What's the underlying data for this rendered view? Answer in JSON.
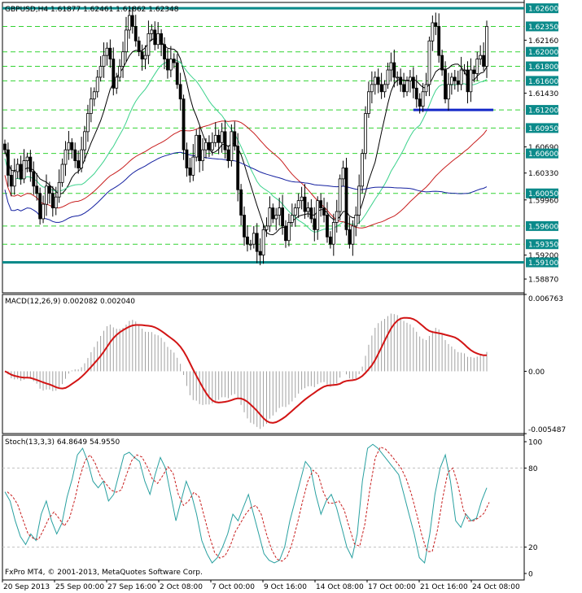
{
  "header": {
    "symbol_line": "GBPUSD,H4  1.61877 1.62461 1.61862 1.62348",
    "macd_line": "MACD(12,26,9) 0.002082 0.002040",
    "stoch_line": "Stoch(13,3,3) 64.8649 54.9550",
    "copyright": "FxPro MT4, © 2001-2013, MetaQuotes Software Corp."
  },
  "colors": {
    "candle": "#000000",
    "ma_fast": "#000000",
    "ma_green": "#3cd28c",
    "ma_red": "#c81e1e",
    "ma_blue": "#1420a0",
    "level_line": "#0a8a8a",
    "support_line": "#1428c8",
    "dashed_level": "#00c800",
    "macd_signal": "#d21414",
    "macd_hist": "#a0a0a0",
    "stoch_main": "#28a0a0",
    "stoch_signal": "#c81e1e",
    "label_box": "#0a8a8a"
  },
  "chart_data": [
    {
      "type": "candlestick",
      "title": "GBPUSD,H4",
      "ohlc_current": {
        "open": 1.61877,
        "high": 1.62461,
        "low": 1.61862,
        "close": 1.62348
      },
      "ylim": [
        1.5868,
        1.6268
      ],
      "y_ticks": [
        "1.62350",
        "1.62160",
        "1.62000",
        "1.61800",
        "1.61600",
        "1.61430",
        "1.61200",
        "1.60950",
        "1.60690",
        "1.60600",
        "1.60330",
        "1.60050",
        "1.59960",
        "1.59600",
        "1.59350",
        "1.59200",
        "1.59100",
        "1.58870"
      ],
      "highlighted_levels": [
        "1.62600",
        "1.62350",
        "1.62000",
        "1.61800",
        "1.61600",
        "1.61200",
        "1.60950",
        "1.60600",
        "1.60050",
        "1.59600",
        "1.59350",
        "1.59100"
      ],
      "solid_levels": [
        1.626,
        1.591
      ],
      "dashed_levels": [
        1.6235,
        1.62,
        1.618,
        1.616,
        1.612,
        1.6095,
        1.606,
        1.6005,
        1.596,
        1.5935
      ],
      "support_segment": {
        "price": 1.612
      },
      "x_ticks": [
        "20 Sep 2013",
        "25 Sep 00:00",
        "27 Sep 16:00",
        "2 Oct 08:00",
        "7 Oct 00:00",
        "9 Oct 16:00",
        "14 Oct 08:00",
        "17 Oct 00:00",
        "21 Oct 16:00",
        "24 Oct 08:00"
      ],
      "closes": [
        1.6065,
        1.603,
        1.6015,
        1.6035,
        1.6045,
        1.6025,
        1.605,
        1.6055,
        1.6035,
        1.6015,
        1.6005,
        1.597,
        1.599,
        1.6015,
        1.6005,
        1.5985,
        1.6,
        1.602,
        1.6045,
        1.6065,
        1.6075,
        1.6065,
        1.605,
        1.604,
        1.6065,
        1.609,
        1.6115,
        1.6135,
        1.6145,
        1.6165,
        1.618,
        1.6195,
        1.6205,
        1.619,
        1.615,
        1.6165,
        1.618,
        1.62,
        1.623,
        1.625,
        1.6235,
        1.6215,
        1.62,
        1.619,
        1.6195,
        1.6225,
        1.623,
        1.621,
        1.6225,
        1.621,
        1.619,
        1.6175,
        1.619,
        1.6185,
        1.6155,
        1.6135,
        1.6065,
        1.604,
        1.603,
        1.6055,
        1.6085,
        1.605,
        1.6065,
        1.6075,
        1.6065,
        1.6075,
        1.6085,
        1.6075,
        1.609,
        1.6065,
        1.605,
        1.609,
        1.607,
        1.601,
        1.5975,
        1.5945,
        1.5935,
        1.5935,
        1.595,
        1.5925,
        1.592,
        1.5955,
        1.596,
        1.5985,
        1.597,
        1.5975,
        1.5985,
        1.596,
        1.594,
        1.5965,
        1.5975,
        1.5985,
        1.5995,
        1.6,
        1.598,
        1.5985,
        1.597,
        1.5955,
        1.5995,
        1.5985,
        1.5975,
        1.5945,
        1.5935,
        1.5965,
        1.598,
        1.6025,
        1.604,
        1.5955,
        1.5935,
        1.596,
        1.5975,
        1.6015,
        1.606,
        1.6115,
        1.6145,
        1.6155,
        1.6165,
        1.6155,
        1.6145,
        1.6155,
        1.6175,
        1.6185,
        1.6165,
        1.6165,
        1.6155,
        1.6145,
        1.616,
        1.6165,
        1.615,
        1.6135,
        1.6125,
        1.6145,
        1.6155,
        1.6215,
        1.624,
        1.6235,
        1.6195,
        1.6175,
        1.6135,
        1.6155,
        1.6165,
        1.616,
        1.6155,
        1.6175,
        1.6175,
        1.6145,
        1.6175,
        1.617,
        1.619,
        1.6195,
        1.618,
        1.6235
      ]
    },
    {
      "type": "line",
      "title": "MACD(12,26,9) 0.002082 0.002040",
      "ylim": [
        -0.00548,
        0.00676
      ],
      "y_ticks": [
        "0.006763",
        "0.00",
        "-0.005487"
      ],
      "histogram_series": "MACD",
      "line_series": "Signal"
    },
    {
      "type": "line",
      "title": "Stoch(13,3,3) 64.8649 54.9550",
      "ylim": [
        0,
        100
      ],
      "y_ticks": [
        "100",
        "80",
        "20",
        "0"
      ],
      "series": [
        {
          "name": "%K",
          "values": [
            62,
            55,
            40,
            28,
            22,
            30,
            25,
            45,
            55,
            40,
            30,
            38,
            58,
            72,
            90,
            95,
            85,
            70,
            65,
            70,
            55,
            60,
            75,
            90,
            92,
            88,
            85,
            70,
            60,
            75,
            88,
            80,
            60,
            40,
            55,
            70,
            60,
            45,
            25,
            15,
            8,
            12,
            20,
            30,
            45,
            40,
            50,
            60,
            45,
            30,
            15,
            10,
            8,
            10,
            20,
            40,
            55,
            70,
            85,
            80,
            60,
            45,
            55,
            60,
            50,
            35,
            20,
            12,
            30,
            70,
            95,
            98,
            95,
            90,
            85,
            80,
            75,
            60,
            45,
            30,
            12,
            8,
            30,
            60,
            80,
            90,
            70,
            40,
            35,
            45,
            40,
            42,
            55,
            65
          ]
        }
      ]
    }
  ]
}
